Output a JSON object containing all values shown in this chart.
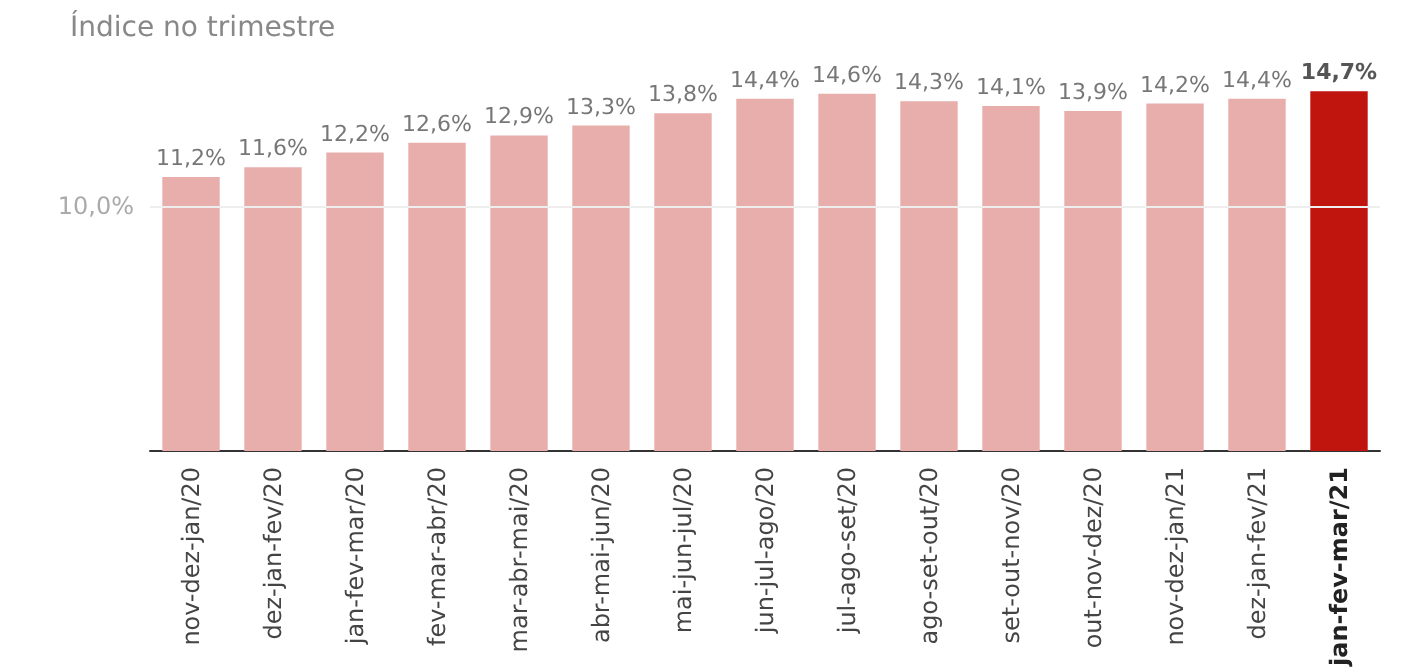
{
  "chart_data": {
    "type": "bar",
    "title": "Índice no trimestre",
    "categories": [
      "nov-dez-jan/20",
      "dez-jan-fev/20",
      "jan-fev-mar/20",
      "fev-mar-abr/20",
      "mar-abr-mai/20",
      "abr-mai-jun/20",
      "mai-jun-jul/20",
      "jun-jul-ago/20",
      "jul-ago-set/20",
      "ago-set-out/20",
      "set-out-nov/20",
      "out-nov-dez/20",
      "nov-dez-jan/21",
      "dez-jan-fev/21",
      "jan-fev-mar/21"
    ],
    "values": [
      11.2,
      11.6,
      12.2,
      12.6,
      12.9,
      13.3,
      13.8,
      14.4,
      14.6,
      14.3,
      14.1,
      13.9,
      14.2,
      14.4,
      14.7
    ],
    "value_labels": [
      "11,2%",
      "11,6%",
      "12,2%",
      "12,6%",
      "12,9%",
      "13,3%",
      "13,8%",
      "14,4%",
      "14,6%",
      "14,3%",
      "14,1%",
      "13,9%",
      "14,2%",
      "14,4%",
      "14,7%"
    ],
    "colors": [
      "#e8aeab",
      "#e8aeab",
      "#e8aeab",
      "#e8aeab",
      "#e8aeab",
      "#e8aeab",
      "#e8aeab",
      "#e8aeab",
      "#e8aeab",
      "#e8aeab",
      "#e8aeab",
      "#e8aeab",
      "#e8aeab",
      "#e8aeab",
      "#c0150f"
    ],
    "ref_lines": [
      {
        "axis": "y",
        "value": 10,
        "label": "10,0%",
        "color": "#eeeeee"
      }
    ]
  }
}
